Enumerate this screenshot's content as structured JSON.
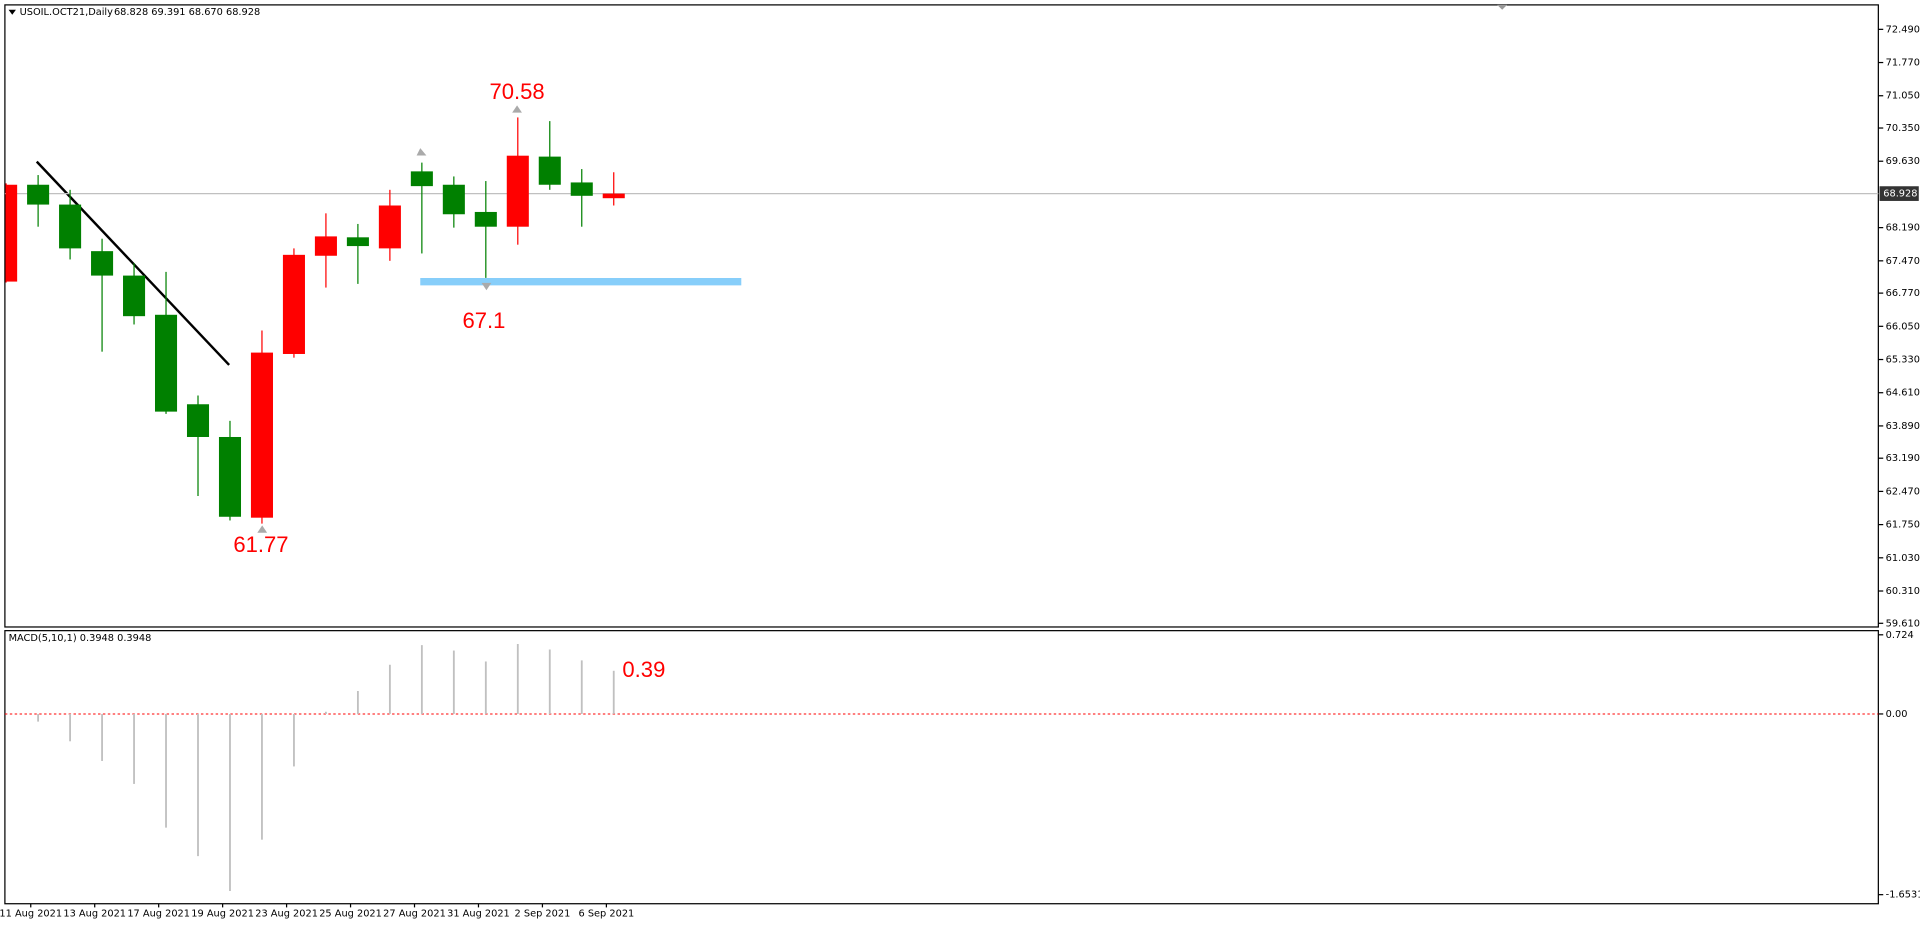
{
  "chart_data": [
    {
      "type": "candlestick",
      "title": "USOIL.OCT21,Daily",
      "header_values": "68.828 69.391 68.670 68.928",
      "categories": [
        null,
        "11 Aug 2021",
        null,
        "13 Aug 2021",
        null,
        "17 Aug 2021",
        null,
        "19 Aug 2021",
        null,
        "23 Aug 2021",
        null,
        "25 Aug 2021",
        null,
        "27 Aug 2021",
        null,
        "31 Aug 2021",
        null,
        "2 Sep 2021",
        null,
        "6 Sep 2021"
      ],
      "open": [
        67.02,
        69.12,
        68.69,
        67.68,
        67.15,
        66.3,
        64.36,
        63.65,
        61.9,
        65.45,
        67.58,
        67.98,
        67.74,
        69.41,
        69.12,
        68.53,
        68.21,
        69.73,
        69.17,
        68.828
      ],
      "high": [
        69.15,
        69.33,
        69.01,
        67.95,
        67.42,
        67.23,
        64.55,
        64.0,
        65.96,
        67.74,
        68.5,
        68.27,
        69.01,
        69.6,
        69.3,
        69.2,
        70.58,
        70.5,
        69.46,
        69.391
      ],
      "low": [
        67.0,
        68.21,
        67.5,
        65.5,
        66.09,
        64.15,
        62.37,
        61.84,
        61.77,
        65.37,
        66.89,
        66.97,
        67.47,
        67.63,
        68.19,
        67.1,
        67.82,
        69.01,
        68.21,
        68.67
      ],
      "close": [
        69.12,
        68.69,
        67.74,
        67.15,
        66.27,
        64.2,
        63.65,
        61.92,
        65.48,
        67.6,
        68.0,
        67.79,
        68.67,
        69.09,
        68.48,
        68.21,
        69.75,
        69.12,
        68.88,
        68.928
      ],
      "up_color": "#ff0000",
      "down_color": "#008000",
      "ylim": [
        59.53,
        73.02
      ],
      "yticks": [
        {
          "value": 72.49,
          "label": "72.490"
        },
        {
          "value": 71.77,
          "label": "71.770"
        },
        {
          "value": 71.05,
          "label": "71.050"
        },
        {
          "value": 70.35,
          "label": "70.350"
        },
        {
          "value": 69.63,
          "label": "69.630"
        },
        {
          "value": 68.19,
          "label": "68.190"
        },
        {
          "value": 67.47,
          "label": "67.470"
        },
        {
          "value": 66.77,
          "label": "66.770"
        },
        {
          "value": 66.05,
          "label": "66.050"
        },
        {
          "value": 65.33,
          "label": "65.330"
        },
        {
          "value": 64.61,
          "label": "64.610"
        },
        {
          "value": 63.89,
          "label": "63.890"
        },
        {
          "value": 63.19,
          "label": "63.190"
        },
        {
          "value": 62.47,
          "label": "62.470"
        },
        {
          "value": 61.75,
          "label": "61.750"
        },
        {
          "value": 61.03,
          "label": "61.030"
        },
        {
          "value": 60.31,
          "label": "60.310"
        },
        {
          "value": 59.61,
          "label": "59.610"
        }
      ],
      "last_price": {
        "value": 68.928,
        "label": "68.928"
      },
      "annotations": [
        "70.58",
        "67.1",
        "61.77"
      ]
    },
    {
      "type": "histogram-bar",
      "title": "MACD(5,10,1) 0.3948 0.3948",
      "values": [
        null,
        -0.07,
        -0.25,
        -0.43,
        -0.64,
        -1.04,
        -1.3,
        -1.62,
        -1.15,
        -0.48,
        0.02,
        0.21,
        0.45,
        0.63,
        0.58,
        0.48,
        0.64,
        0.59,
        0.49,
        0.3948
      ],
      "color": "#c0c0c0",
      "zero_line_color": "#ff0000",
      "ylim": [
        -1.736,
        0.762
      ],
      "yticks": [
        {
          "value": 0.724,
          "label": "0.724"
        },
        {
          "value": 0,
          "label": "0.00"
        },
        {
          "value": -1.6531,
          "label": "-1.6531"
        }
      ],
      "annotations": [
        "0.39"
      ]
    }
  ]
}
